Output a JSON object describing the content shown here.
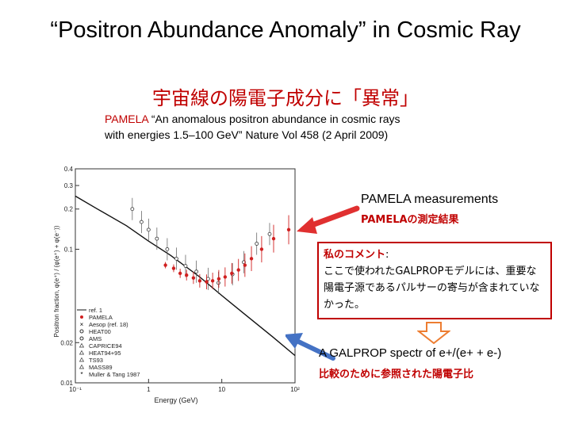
{
  "slide": {
    "title": "“Positron Abundance Anomaly” in Cosmic Ray",
    "subtitle_jp": "宇宙線の陽電子成分に「異常」",
    "citation_author": "PAMELA",
    "citation_line1": " “An anomalous positron abundance in cosmic rays",
    "citation_line2": "with energies 1.5–100 GeV” Nature Vol 458 (2 April 2009)"
  },
  "annotations": {
    "pamela_measurements": "PAMELA measurements",
    "pamela_measurements_jp": "PAMELAの測定結果",
    "comment_head": "私のコメント",
    "comment_colon": ":",
    "comment_body": "ここで使われたGALPROPモデルには、重要な陽電子源であるパルサーの寄与が含まれていなかった。",
    "galprop": "A GALPROP spectr of e+/(e+ + e-)",
    "galprop_jp": "比較のために参照された陽電子比"
  },
  "colors": {
    "accent_red": "#c00000",
    "arrow_blue": "#4472c4",
    "arrow_red": "#e03030",
    "hollow_arrow": "#ed7d31"
  },
  "icons": {
    "red_arrow": "arrow-left-icon",
    "blue_arrow": "arrow-down-left-icon",
    "hollow_arrow": "arrow-down-icon"
  },
  "chart_data": {
    "type": "scatter",
    "title": "",
    "xlabel": "Energy (GeV)",
    "ylabel": "Positron fraction, φ(e⁺) / (φ(e⁺) + φ(e⁻))",
    "xscale": "log",
    "yscale": "log",
    "xlim": [
      0.1,
      100
    ],
    "ylim": [
      0.01,
      0.4
    ],
    "xticks": [
      {
        "v": 0.1,
        "label": "10⁻¹"
      },
      {
        "v": 1,
        "label": "1"
      },
      {
        "v": 10,
        "label": "10"
      },
      {
        "v": 100,
        "label": "10²"
      }
    ],
    "yticks": [
      {
        "v": 0.01,
        "label": "0.01"
      },
      {
        "v": 0.02,
        "label": "0.02"
      },
      {
        "v": 0.1,
        "label": "0.1"
      },
      {
        "v": 0.2,
        "label": "0.2"
      },
      {
        "v": 0.3,
        "label": "0.3"
      },
      {
        "v": 0.4,
        "label": "0.4"
      }
    ],
    "legend_position": "bottom-left",
    "legend": [
      "ref. 1",
      "PAMELA",
      "Aesop (ref. 18)",
      "HEAT00",
      "AMS",
      "CAPRICE94",
      "HEAT94+95",
      "TS93",
      "MASS89",
      "Muller & Tang 1987"
    ],
    "series": [
      {
        "name": "ref. 1",
        "kind": "line",
        "x": [
          0.1,
          0.2,
          0.5,
          1,
          2,
          5,
          10,
          20,
          50,
          100
        ],
        "y": [
          0.25,
          0.2,
          0.15,
          0.115,
          0.09,
          0.062,
          0.045,
          0.033,
          0.022,
          0.016
        ]
      },
      {
        "name": "PAMELA",
        "kind": "points",
        "x": [
          1.7,
          2.2,
          2.7,
          3.3,
          4.1,
          5.0,
          6.2,
          7.5,
          9.1,
          11.1,
          13.7,
          16.9,
          20.7,
          25.4,
          35,
          51,
          82
        ],
        "y": [
          0.076,
          0.072,
          0.066,
          0.064,
          0.061,
          0.058,
          0.057,
          0.058,
          0.06,
          0.062,
          0.066,
          0.07,
          0.076,
          0.085,
          0.1,
          0.12,
          0.14
        ]
      },
      {
        "name": "other experiments",
        "kind": "points",
        "x": [
          0.6,
          0.8,
          1.0,
          1.3,
          1.8,
          2.4,
          3.2,
          4.5,
          6.5,
          9,
          14,
          20,
          30,
          45
        ],
        "y": [
          0.2,
          0.16,
          0.14,
          0.12,
          0.1,
          0.085,
          0.075,
          0.068,
          0.06,
          0.056,
          0.065,
          0.08,
          0.11,
          0.13
        ]
      }
    ]
  }
}
